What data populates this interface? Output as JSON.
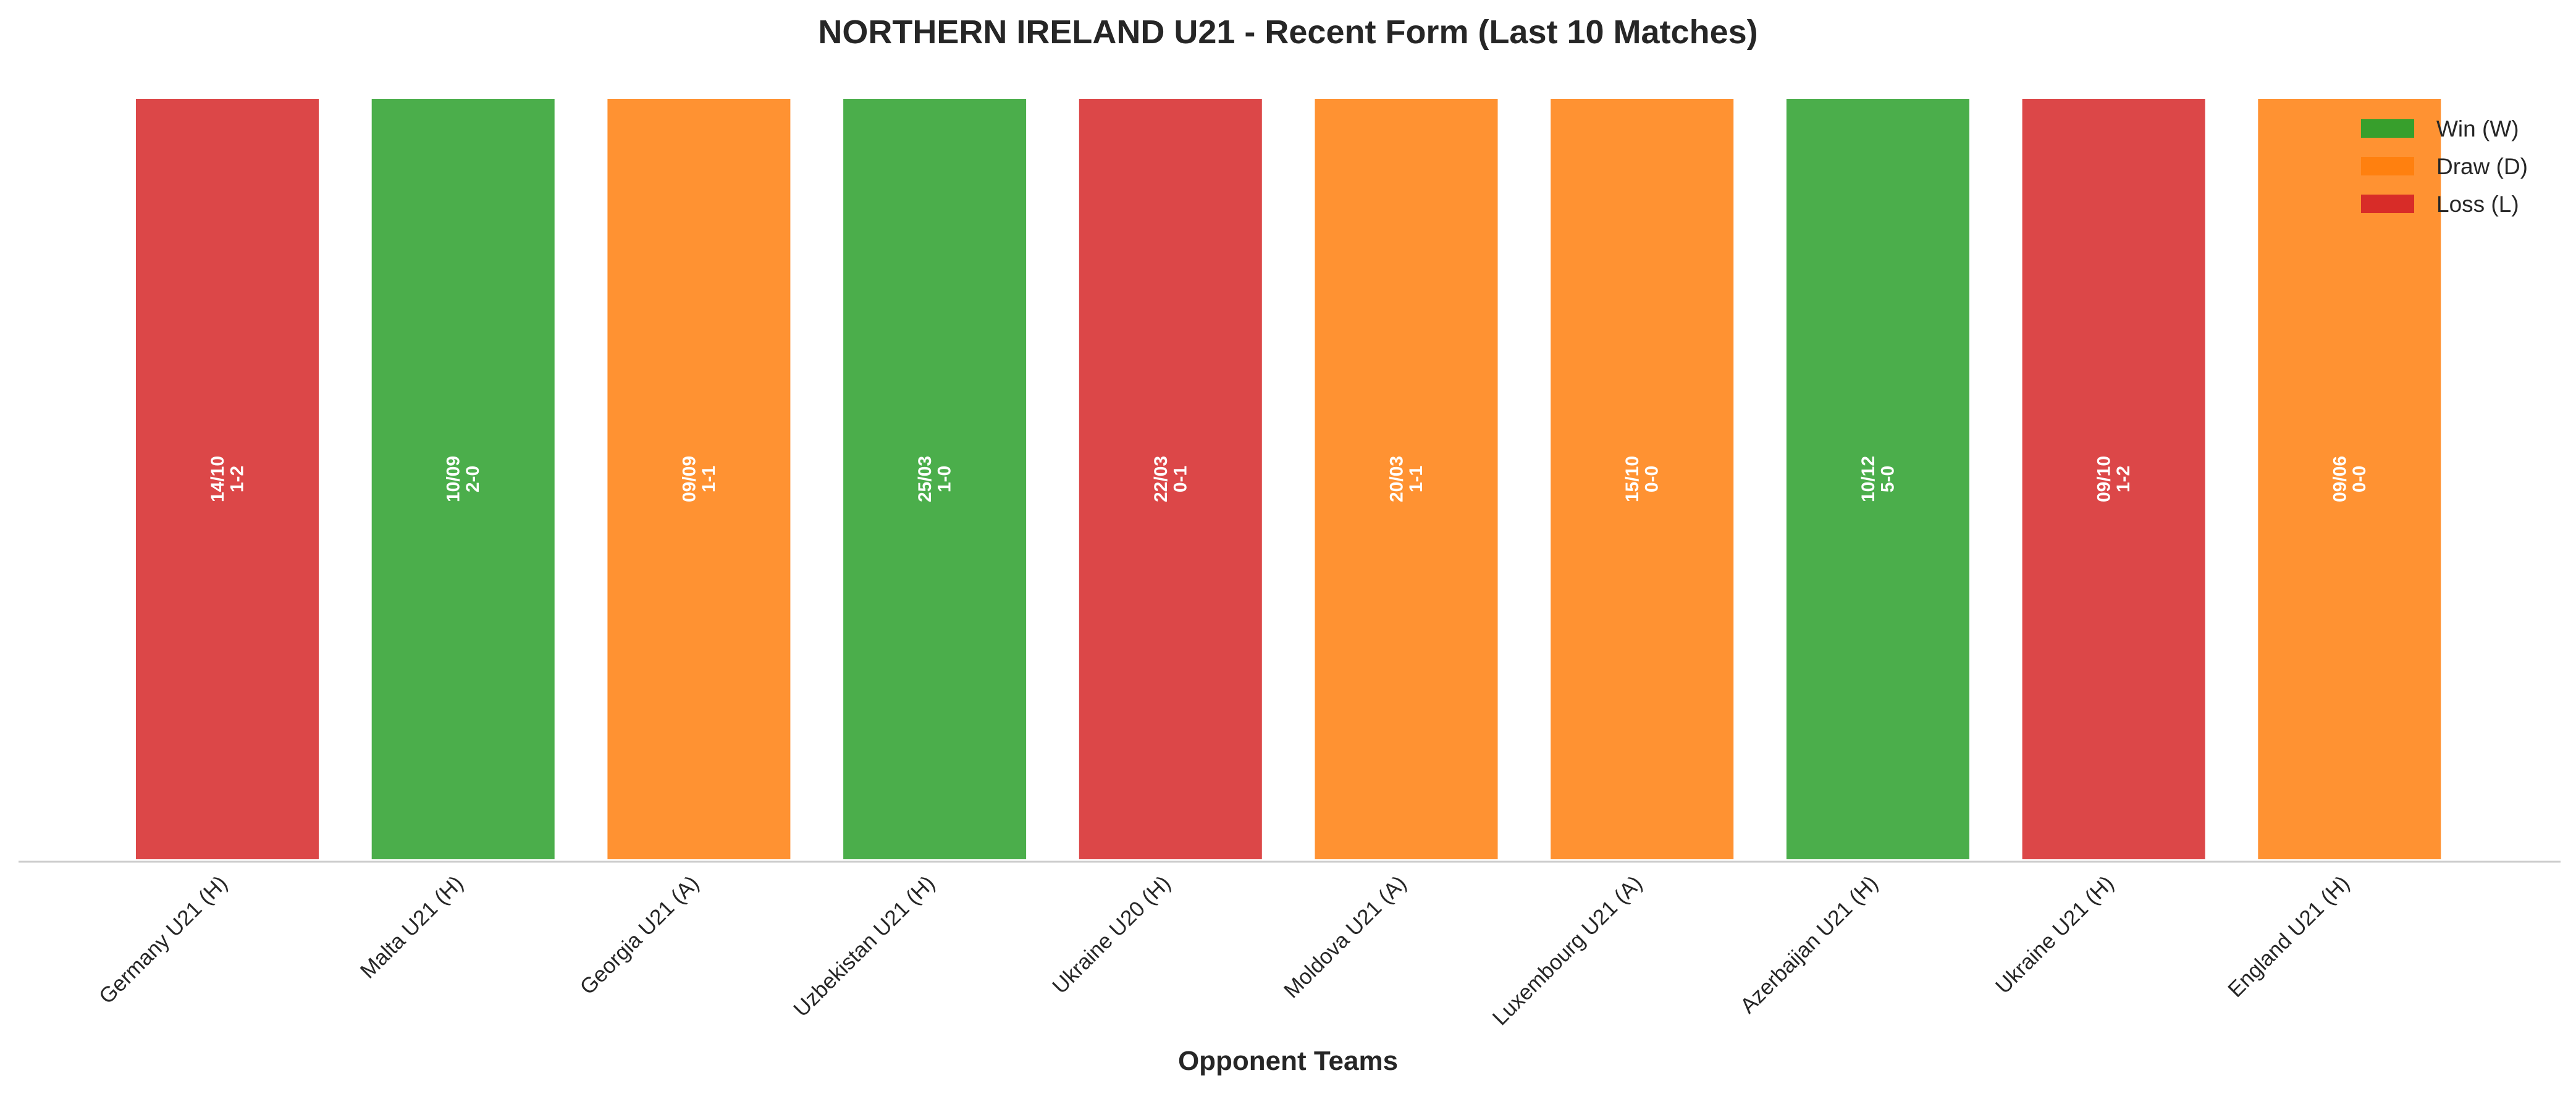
{
  "chart_data": {
    "type": "bar",
    "title": "NORTHERN IRELAND U21 - Recent Form (Last 10 Matches)",
    "xlabel": "Opponent Teams",
    "ylabel": "",
    "grid": false,
    "legend_position": "top-right",
    "categories": [
      "Germany U21 (H)",
      "Malta U21 (H)",
      "Georgia U21 (A)",
      "Uzbekistan U21 (H)",
      "Ukraine U20 (H)",
      "Moldova U21 (A)",
      "Luxembourg U21 (A)",
      "Azerbaijan U21 (H)",
      "Ukraine U21 (H)",
      "England U21 (H)"
    ],
    "values": [
      1,
      1,
      1,
      1,
      1,
      1,
      1,
      1,
      1,
      1
    ],
    "results": [
      "L",
      "W",
      "D",
      "W",
      "L",
      "D",
      "D",
      "W",
      "L",
      "D"
    ],
    "dates": [
      "14/10",
      "10/09",
      "09/09",
      "25/03",
      "22/03",
      "20/03",
      "15/10",
      "10/12",
      "09/10",
      "09/06"
    ],
    "scores": [
      "1-2",
      "2-0",
      "1-1",
      "1-0",
      "0-1",
      "1-1",
      "0-0",
      "5-0",
      "1-2",
      "0-0"
    ],
    "legend": [
      {
        "key": "W",
        "label": "Win (W)",
        "color": "#2ca02c"
      },
      {
        "key": "D",
        "label": "Draw (D)",
        "color": "#ff7f0e"
      },
      {
        "key": "L",
        "label": "Loss (L)",
        "color": "#d62728"
      }
    ]
  }
}
